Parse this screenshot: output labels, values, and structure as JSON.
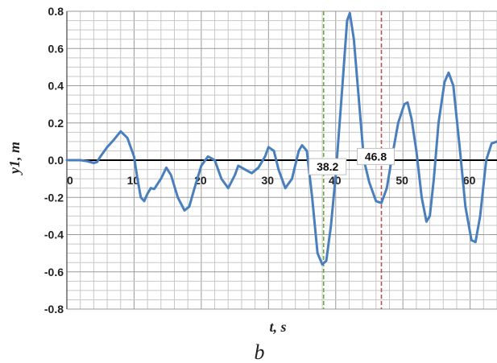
{
  "chart_data": {
    "type": "line",
    "xlabel": "t, s",
    "ylabel": "y1, m",
    "caption": "b",
    "xlim": [
      0,
      64
    ],
    "ylim": [
      -0.8,
      0.8
    ],
    "x_ticks": [
      0,
      10,
      20,
      30,
      40,
      50,
      60
    ],
    "y_ticks": [
      -0.8,
      -0.6,
      -0.4,
      -0.2,
      0.0,
      0.2,
      0.4,
      0.6,
      0.8
    ],
    "y_tick_labels": [
      "-0.8",
      "-0.6",
      "-0.4",
      "-0.2",
      "0.0",
      "0.2",
      "0.4",
      "0.6",
      "0.8"
    ],
    "grid": true,
    "series": [
      {
        "color": "#4a7fbd",
        "points": [
          [
            0,
            0.0
          ],
          [
            2,
            0.0
          ],
          [
            3,
            -0.005
          ],
          [
            4,
            -0.015
          ],
          [
            4.5,
            -0.01
          ],
          [
            5,
            0.02
          ],
          [
            6,
            0.07
          ],
          [
            7,
            0.11
          ],
          [
            8,
            0.155
          ],
          [
            9,
            0.12
          ],
          [
            10,
            0.02
          ],
          [
            10.5,
            -0.1
          ],
          [
            11,
            -0.2
          ],
          [
            11.5,
            -0.22
          ],
          [
            12,
            -0.18
          ],
          [
            12.5,
            -0.15
          ],
          [
            13,
            -0.155
          ],
          [
            14,
            -0.1
          ],
          [
            14.8,
            -0.04
          ],
          [
            15.5,
            -0.08
          ],
          [
            16.5,
            -0.2
          ],
          [
            17.5,
            -0.27
          ],
          [
            18.2,
            -0.25
          ],
          [
            19,
            -0.15
          ],
          [
            20,
            -0.03
          ],
          [
            21,
            0.02
          ],
          [
            22,
            0.0
          ],
          [
            23,
            -0.1
          ],
          [
            24,
            -0.15
          ],
          [
            25,
            -0.08
          ],
          [
            25.5,
            -0.03
          ],
          [
            26.5,
            -0.05
          ],
          [
            27.5,
            -0.07
          ],
          [
            28.5,
            -0.04
          ],
          [
            29.5,
            0.02
          ],
          [
            30,
            0.07
          ],
          [
            30.8,
            0.05
          ],
          [
            31.5,
            -0.05
          ],
          [
            32.5,
            -0.15
          ],
          [
            33.5,
            -0.1
          ],
          [
            34.5,
            0.05
          ],
          [
            35,
            0.08
          ],
          [
            35.7,
            0.05
          ],
          [
            36.5,
            -0.2
          ],
          [
            37.3,
            -0.5
          ],
          [
            38,
            -0.56
          ],
          [
            38.6,
            -0.54
          ],
          [
            39.3,
            -0.35
          ],
          [
            40,
            -0.08
          ],
          [
            41,
            0.4
          ],
          [
            41.7,
            0.75
          ],
          [
            42.1,
            0.79
          ],
          [
            42.7,
            0.65
          ],
          [
            43.5,
            0.3
          ],
          [
            44.2,
            0.0
          ],
          [
            45,
            -0.12
          ],
          [
            46,
            -0.22
          ],
          [
            46.8,
            -0.23
          ],
          [
            47.6,
            -0.15
          ],
          [
            48.3,
            0.0
          ],
          [
            49.3,
            0.2
          ],
          [
            50.2,
            0.3
          ],
          [
            50.7,
            0.31
          ],
          [
            51.3,
            0.22
          ],
          [
            52,
            0.05
          ],
          [
            52.8,
            -0.2
          ],
          [
            53.5,
            -0.33
          ],
          [
            54,
            -0.3
          ],
          [
            54.6,
            -0.1
          ],
          [
            55.3,
            0.2
          ],
          [
            56.2,
            0.42
          ],
          [
            56.8,
            0.47
          ],
          [
            57.5,
            0.4
          ],
          [
            58.5,
            0.05
          ],
          [
            59.3,
            -0.25
          ],
          [
            60.2,
            -0.43
          ],
          [
            60.8,
            -0.44
          ],
          [
            61.5,
            -0.3
          ],
          [
            62.4,
            0.0
          ],
          [
            63.2,
            0.09
          ],
          [
            64,
            0.1
          ]
        ]
      }
    ],
    "vlines": [
      {
        "x": 38.2,
        "label": "38.2",
        "color": "#6aaa3a"
      },
      {
        "x": 46.8,
        "label": "46.8",
        "color": "#c0504d"
      }
    ]
  }
}
